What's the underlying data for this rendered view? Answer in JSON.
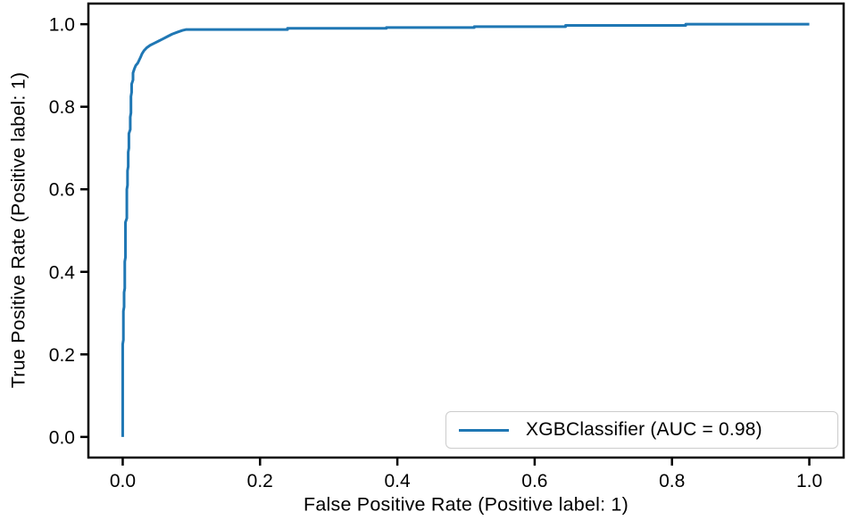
{
  "figure": {
    "background": "#ffffff"
  },
  "colors": {
    "curve": "#1f77b4",
    "axis": "#000000",
    "legend_border": "#cccccc",
    "text": "#000000"
  },
  "chart_data": {
    "type": "line",
    "title": "",
    "subtitle": "",
    "xlabel": "False Positive Rate (Positive label: 1)",
    "ylabel": "True Positive Rate (Positive label: 1)",
    "xlim": [
      -0.05,
      1.05
    ],
    "ylim": [
      -0.05,
      1.05
    ],
    "grid": false,
    "x_ticks": [
      0.0,
      0.2,
      0.4,
      0.6,
      0.8,
      1.0
    ],
    "x_tick_labels": [
      "0.0",
      "0.2",
      "0.4",
      "0.6",
      "0.8",
      "1.0"
    ],
    "y_ticks": [
      0.0,
      0.2,
      0.4,
      0.6,
      0.8,
      1.0
    ],
    "y_tick_labels": [
      "0.0",
      "0.2",
      "0.4",
      "0.6",
      "0.8",
      "1.0"
    ],
    "legend": {
      "position": "lower right",
      "entries": [
        {
          "label": "XGBClassifier (AUC = 0.98)",
          "color": "#1f77b4"
        }
      ]
    },
    "series": [
      {
        "name": "XGBClassifier",
        "auc": 0.98,
        "color": "#1f77b4",
        "points": [
          [
            0.0,
            0.0
          ],
          [
            0.0,
            0.225
          ],
          [
            0.001,
            0.235
          ],
          [
            0.001,
            0.305
          ],
          [
            0.002,
            0.315
          ],
          [
            0.002,
            0.35
          ],
          [
            0.003,
            0.36
          ],
          [
            0.003,
            0.425
          ],
          [
            0.004,
            0.435
          ],
          [
            0.004,
            0.52
          ],
          [
            0.006,
            0.53
          ],
          [
            0.006,
            0.6
          ],
          [
            0.007,
            0.61
          ],
          [
            0.007,
            0.645
          ],
          [
            0.008,
            0.655
          ],
          [
            0.008,
            0.69
          ],
          [
            0.009,
            0.7
          ],
          [
            0.009,
            0.735
          ],
          [
            0.011,
            0.745
          ],
          [
            0.011,
            0.775
          ],
          [
            0.012,
            0.785
          ],
          [
            0.012,
            0.825
          ],
          [
            0.013,
            0.835
          ],
          [
            0.013,
            0.855
          ],
          [
            0.015,
            0.865
          ],
          [
            0.015,
            0.882
          ],
          [
            0.017,
            0.892
          ],
          [
            0.019,
            0.9
          ],
          [
            0.022,
            0.906
          ],
          [
            0.024,
            0.913
          ],
          [
            0.026,
            0.92
          ],
          [
            0.028,
            0.928
          ],
          [
            0.031,
            0.936
          ],
          [
            0.035,
            0.943
          ],
          [
            0.04,
            0.949
          ],
          [
            0.046,
            0.954
          ],
          [
            0.052,
            0.959
          ],
          [
            0.058,
            0.964
          ],
          [
            0.065,
            0.97
          ],
          [
            0.072,
            0.976
          ],
          [
            0.08,
            0.981
          ],
          [
            0.087,
            0.985
          ],
          [
            0.092,
            0.987
          ],
          [
            0.24,
            0.987
          ],
          [
            0.24,
            0.99
          ],
          [
            0.384,
            0.99
          ],
          [
            0.384,
            0.992
          ],
          [
            0.512,
            0.992
          ],
          [
            0.512,
            0.994
          ],
          [
            0.645,
            0.994
          ],
          [
            0.645,
            0.997
          ],
          [
            0.82,
            0.997
          ],
          [
            0.82,
            1.0
          ],
          [
            1.0,
            1.0
          ]
        ]
      }
    ]
  }
}
